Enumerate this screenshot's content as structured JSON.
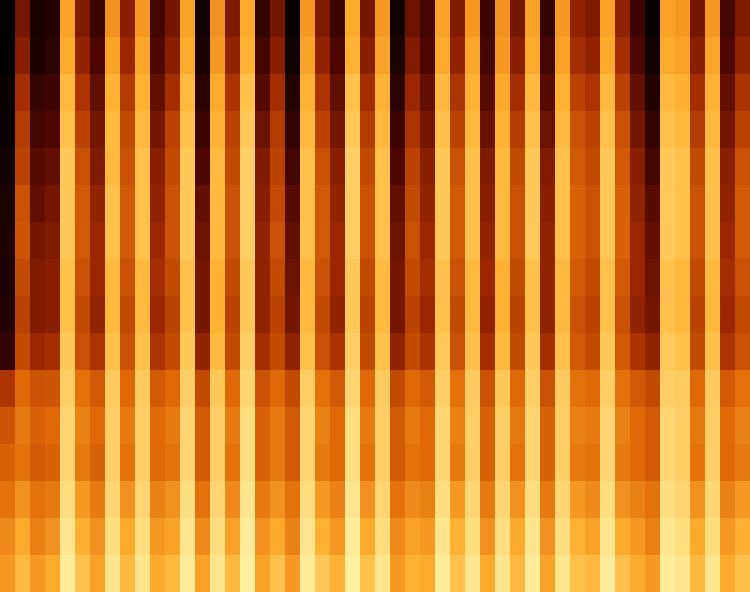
{
  "chart_data": {
    "type": "heatmap",
    "tick_labels": false,
    "cells": [
      [
        8,
        8,
        10,
        10,
        12,
        14,
        15,
        15,
        16,
        20,
        46,
        55,
        58,
        62,
        68,
        72
      ],
      [
        34,
        38,
        44,
        48,
        50,
        54,
        55,
        52,
        50,
        52,
        60,
        64,
        62,
        70,
        76,
        80
      ],
      [
        14,
        15,
        20,
        24,
        28,
        30,
        34,
        36,
        36,
        42,
        54,
        58,
        56,
        62,
        66,
        72
      ],
      [
        16,
        18,
        22,
        26,
        30,
        34,
        36,
        38,
        38,
        44,
        55,
        60,
        58,
        64,
        70,
        76
      ],
      [
        74,
        76,
        80,
        82,
        84,
        84,
        84,
        82,
        82,
        84,
        86,
        88,
        88,
        90,
        92,
        94
      ],
      [
        36,
        40,
        46,
        50,
        54,
        56,
        56,
        54,
        52,
        54,
        62,
        66,
        64,
        72,
        78,
        82
      ],
      [
        22,
        26,
        30,
        34,
        36,
        40,
        42,
        42,
        40,
        46,
        56,
        60,
        58,
        64,
        70,
        74
      ],
      [
        70,
        74,
        78,
        80,
        80,
        82,
        82,
        80,
        80,
        82,
        85,
        86,
        86,
        88,
        90,
        92
      ],
      [
        38,
        42,
        48,
        52,
        54,
        56,
        56,
        54,
        52,
        54,
        60,
        64,
        62,
        70,
        76,
        80
      ],
      [
        72,
        75,
        78,
        80,
        82,
        82,
        82,
        80,
        80,
        82,
        85,
        86,
        86,
        88,
        90,
        92
      ],
      [
        24,
        26,
        30,
        34,
        38,
        40,
        42,
        44,
        42,
        46,
        56,
        60,
        60,
        66,
        72,
        76
      ],
      [
        34,
        38,
        44,
        50,
        52,
        54,
        54,
        52,
        50,
        52,
        60,
        64,
        62,
        70,
        74,
        80
      ],
      [
        74,
        76,
        80,
        82,
        84,
        84,
        84,
        82,
        82,
        84,
        86,
        88,
        88,
        90,
        92,
        94
      ],
      [
        12,
        14,
        18,
        22,
        26,
        30,
        32,
        34,
        34,
        40,
        52,
        56,
        56,
        62,
        68,
        74
      ],
      [
        70,
        72,
        76,
        78,
        80,
        80,
        80,
        78,
        78,
        80,
        84,
        86,
        86,
        88,
        90,
        92
      ],
      [
        36,
        40,
        46,
        50,
        52,
        54,
        54,
        52,
        50,
        52,
        60,
        64,
        62,
        68,
        74,
        80
      ],
      [
        76,
        78,
        82,
        84,
        86,
        86,
        86,
        84,
        84,
        86,
        88,
        90,
        90,
        92,
        94,
        95
      ],
      [
        20,
        24,
        28,
        32,
        36,
        38,
        40,
        40,
        40,
        44,
        54,
        58,
        58,
        64,
        70,
        74
      ],
      [
        34,
        38,
        44,
        48,
        50,
        52,
        54,
        52,
        50,
        52,
        60,
        64,
        64,
        70,
        76,
        82
      ],
      [
        10,
        12,
        16,
        20,
        24,
        28,
        30,
        32,
        34,
        40,
        52,
        56,
        56,
        62,
        66,
        72
      ],
      [
        72,
        74,
        78,
        80,
        82,
        82,
        82,
        80,
        80,
        82,
        86,
        88,
        88,
        90,
        92,
        94
      ],
      [
        36,
        40,
        46,
        50,
        54,
        56,
        56,
        54,
        52,
        54,
        62,
        66,
        64,
        72,
        78,
        84
      ],
      [
        22,
        26,
        30,
        34,
        38,
        40,
        42,
        42,
        40,
        46,
        56,
        60,
        60,
        66,
        72,
        78
      ],
      [
        76,
        78,
        82,
        84,
        86,
        86,
        86,
        84,
        84,
        86,
        88,
        90,
        90,
        92,
        94,
        95
      ],
      [
        34,
        38,
        44,
        48,
        52,
        54,
        54,
        52,
        50,
        52,
        60,
        64,
        62,
        70,
        76,
        82
      ],
      [
        72,
        74,
        78,
        80,
        82,
        82,
        82,
        80,
        80,
        82,
        85,
        86,
        86,
        88,
        90,
        92
      ],
      [
        12,
        14,
        18,
        22,
        26,
        30,
        32,
        34,
        34,
        40,
        52,
        56,
        56,
        62,
        68,
        72
      ],
      [
        32,
        36,
        42,
        46,
        50,
        52,
        54,
        52,
        50,
        52,
        60,
        64,
        62,
        68,
        74,
        78
      ],
      [
        24,
        26,
        30,
        34,
        38,
        40,
        42,
        44,
        42,
        46,
        56,
        60,
        60,
        66,
        72,
        76
      ],
      [
        74,
        76,
        80,
        82,
        84,
        84,
        84,
        82,
        82,
        84,
        86,
        88,
        88,
        90,
        92,
        94
      ],
      [
        36,
        40,
        46,
        50,
        54,
        56,
        56,
        54,
        52,
        54,
        62,
        66,
        64,
        72,
        78,
        82
      ],
      [
        72,
        75,
        78,
        80,
        82,
        82,
        82,
        80,
        80,
        82,
        85,
        86,
        86,
        88,
        90,
        92
      ],
      [
        22,
        24,
        28,
        32,
        36,
        38,
        40,
        42,
        40,
        44,
        54,
        58,
        58,
        64,
        70,
        76
      ],
      [
        70,
        72,
        76,
        78,
        80,
        80,
        80,
        78,
        78,
        80,
        84,
        86,
        86,
        88,
        90,
        92
      ],
      [
        34,
        38,
        44,
        48,
        52,
        54,
        54,
        52,
        50,
        52,
        60,
        64,
        62,
        70,
        76,
        80
      ],
      [
        74,
        76,
        80,
        82,
        84,
        84,
        84,
        82,
        82,
        84,
        86,
        88,
        88,
        90,
        92,
        94
      ],
      [
        20,
        24,
        28,
        32,
        36,
        38,
        40,
        40,
        40,
        44,
        54,
        58,
        58,
        64,
        70,
        74
      ],
      [
        72,
        74,
        78,
        80,
        82,
        82,
        82,
        80,
        80,
        82,
        85,
        86,
        86,
        88,
        90,
        92
      ],
      [
        40,
        44,
        50,
        54,
        56,
        58,
        58,
        56,
        54,
        56,
        62,
        66,
        64,
        72,
        78,
        82
      ],
      [
        36,
        40,
        46,
        50,
        52,
        54,
        54,
        52,
        50,
        52,
        60,
        64,
        62,
        68,
        74,
        80
      ],
      [
        74,
        76,
        80,
        82,
        84,
        84,
        84,
        82,
        82,
        84,
        86,
        88,
        88,
        90,
        92,
        94
      ],
      [
        40,
        44,
        50,
        54,
        56,
        58,
        58,
        56,
        54,
        56,
        62,
        66,
        64,
        70,
        76,
        82
      ],
      [
        22,
        26,
        30,
        34,
        38,
        40,
        42,
        42,
        40,
        46,
        56,
        60,
        60,
        66,
        72,
        76
      ],
      [
        10,
        12,
        16,
        20,
        24,
        28,
        30,
        32,
        34,
        40,
        52,
        56,
        56,
        62,
        66,
        72
      ],
      [
        74,
        76,
        80,
        82,
        84,
        84,
        84,
        82,
        82,
        84,
        86,
        88,
        88,
        90,
        92,
        94
      ],
      [
        72,
        74,
        78,
        80,
        82,
        82,
        82,
        80,
        80,
        82,
        85,
        86,
        86,
        88,
        90,
        92
      ],
      [
        34,
        38,
        44,
        48,
        52,
        54,
        54,
        52,
        50,
        52,
        60,
        64,
        62,
        70,
        76,
        80
      ],
      [
        72,
        75,
        78,
        80,
        82,
        82,
        82,
        80,
        80,
        82,
        85,
        86,
        86,
        88,
        90,
        92
      ],
      [
        24,
        26,
        30,
        34,
        38,
        40,
        42,
        44,
        42,
        46,
        56,
        60,
        60,
        66,
        72,
        76
      ],
      [
        36,
        40,
        46,
        50,
        54,
        56,
        56,
        54,
        52,
        54,
        62,
        66,
        64,
        72,
        78,
        82
      ]
    ]
  }
}
